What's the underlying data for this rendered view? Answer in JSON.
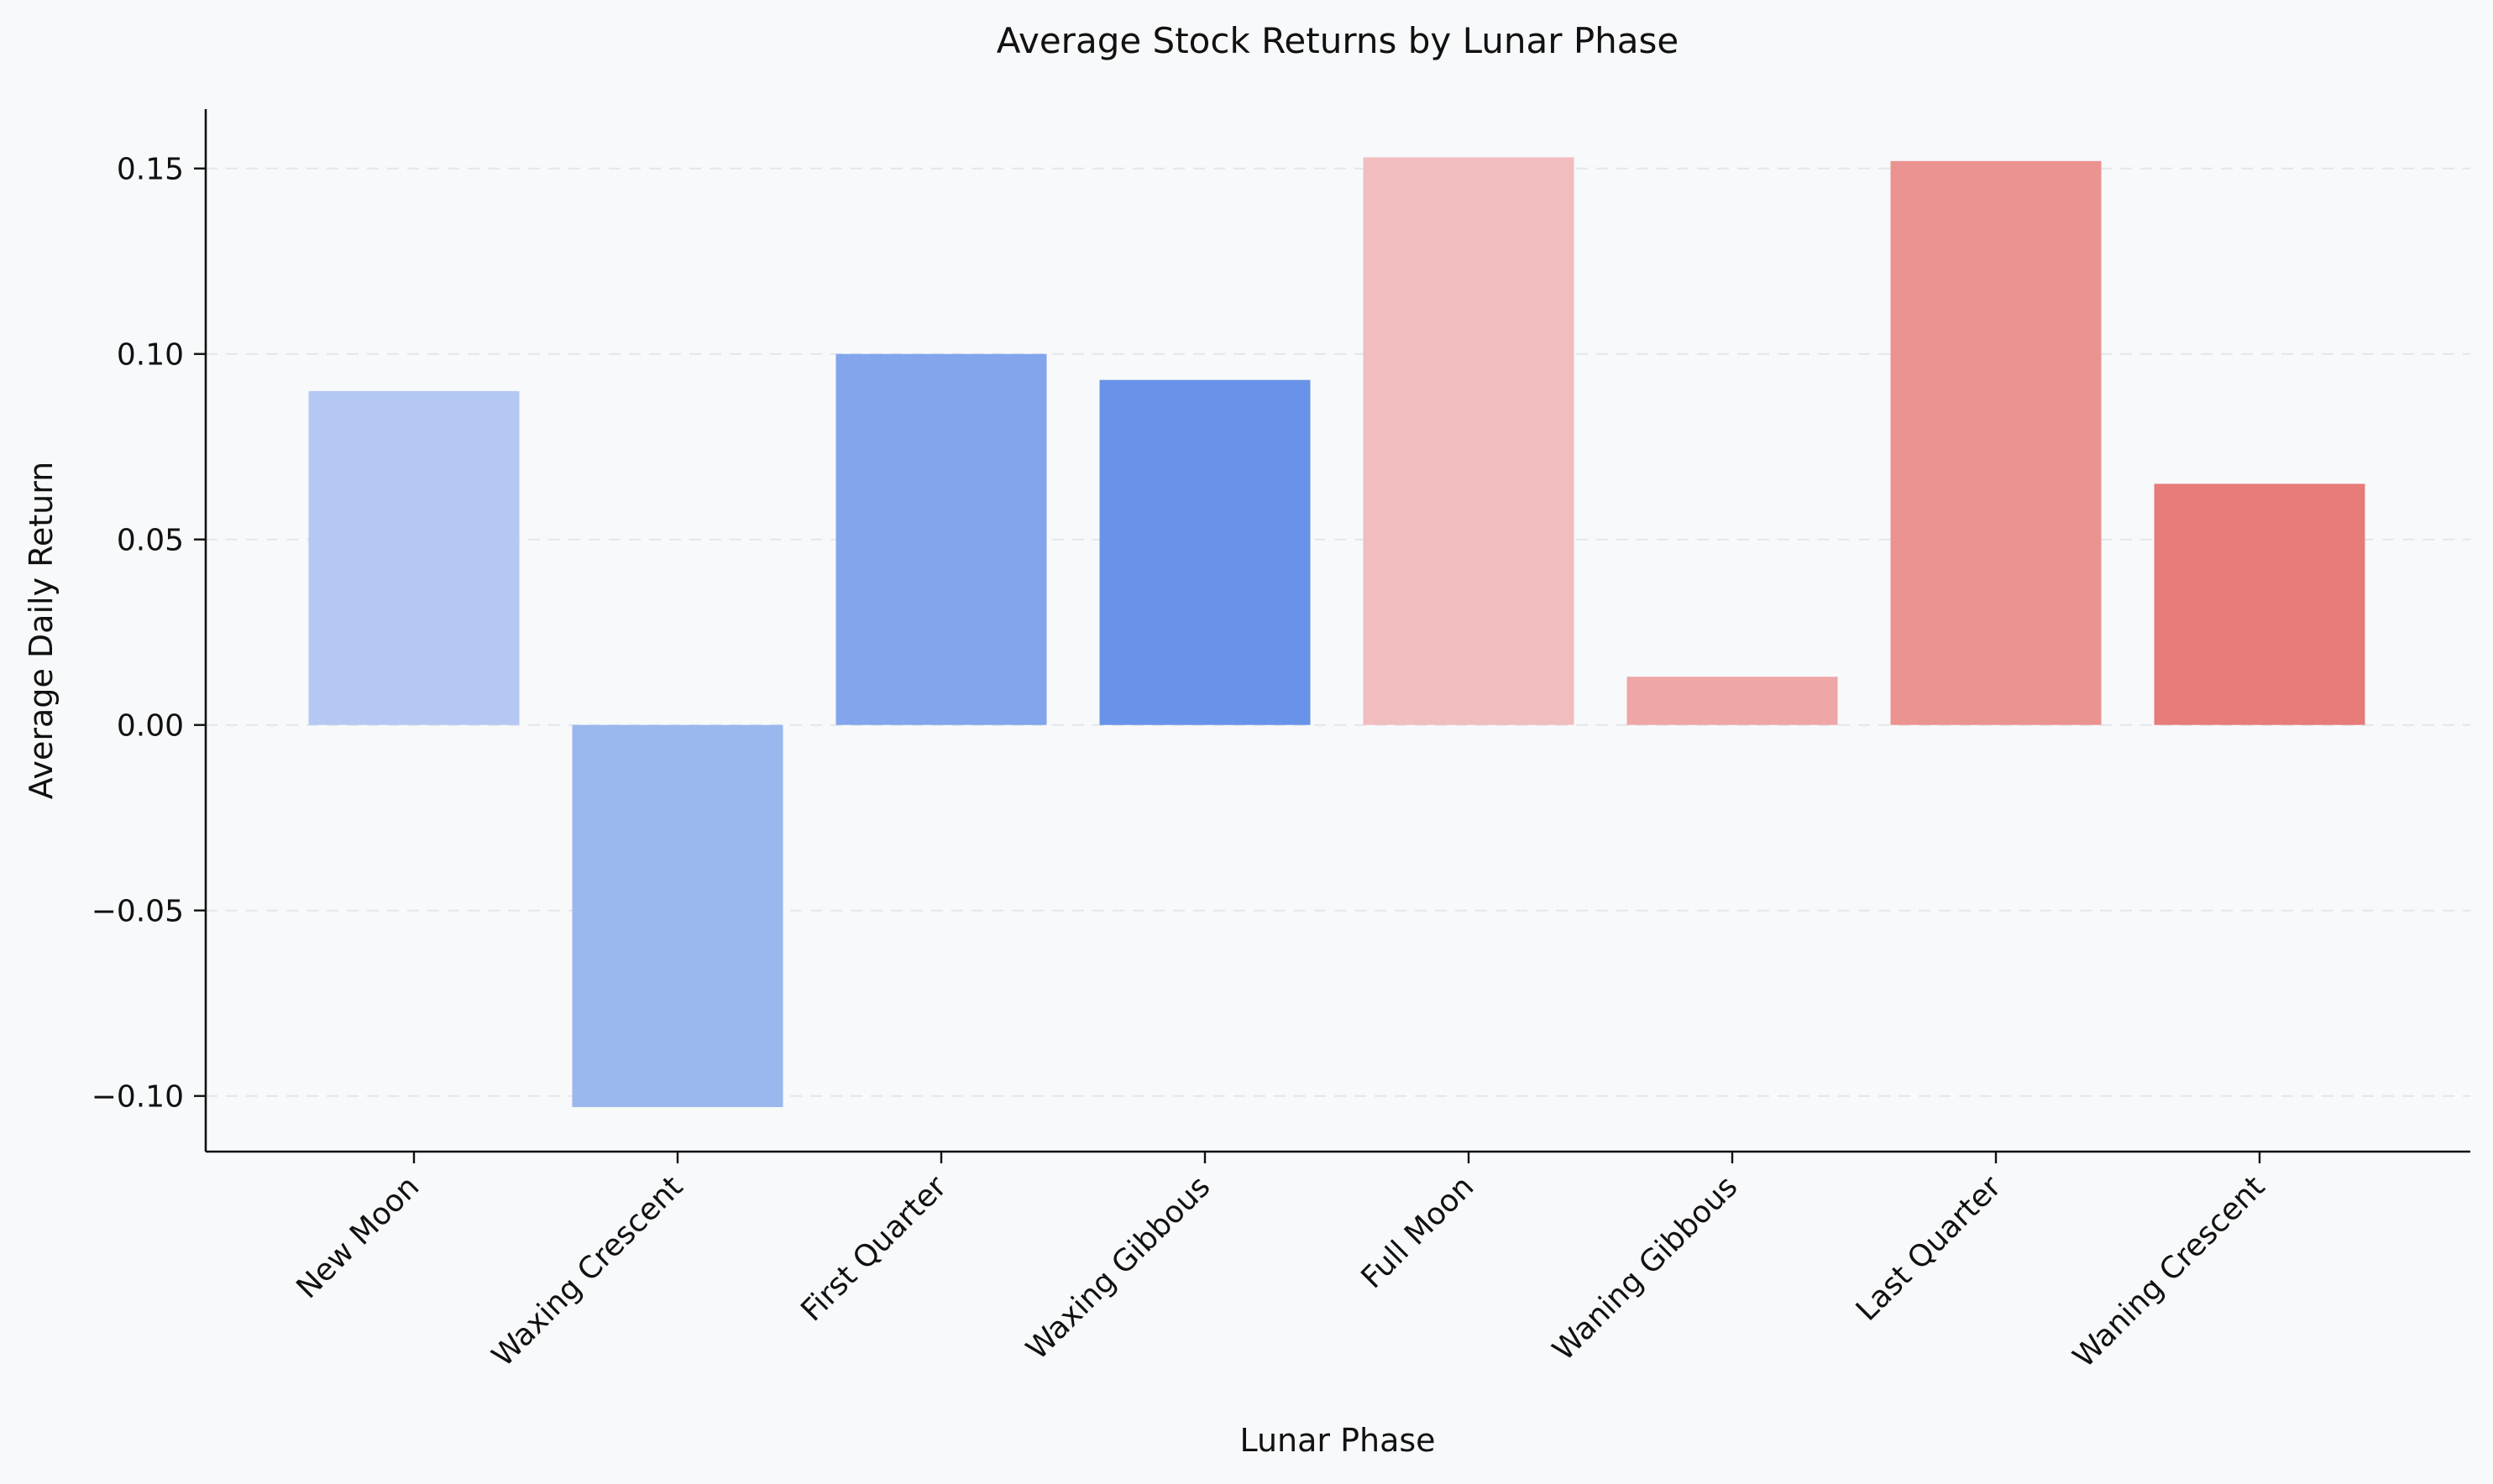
{
  "chart_data": {
    "type": "bar",
    "title": "Average Stock Returns by Lunar Phase",
    "xlabel": "Lunar Phase",
    "ylabel": "Average Daily Return",
    "categories": [
      "New Moon",
      "Waxing Crescent",
      "First Quarter",
      "Waxing Gibbous",
      "Full Moon",
      "Waning Gibbous",
      "Last Quarter",
      "Waning Crescent"
    ],
    "values": [
      0.09,
      -0.103,
      0.1,
      0.093,
      0.153,
      0.013,
      0.152,
      0.065
    ],
    "colors": [
      "#b4c8f3",
      "#9ab7ee",
      "#82a5eb",
      "#6893e8",
      "#f1bdbe",
      "#eea6a7",
      "#ea9390",
      "#e77b7a"
    ],
    "ylim": [
      -0.115,
      0.166
    ],
    "yticks": [
      -0.1,
      -0.05,
      0.0,
      0.05,
      0.1,
      0.15
    ],
    "ytick_labels": [
      "−0.10",
      "−0.05",
      "0.00",
      "0.05",
      "0.10",
      "0.15"
    ],
    "grid": true,
    "grid_axis": "y",
    "background": "#f8f9fa"
  }
}
